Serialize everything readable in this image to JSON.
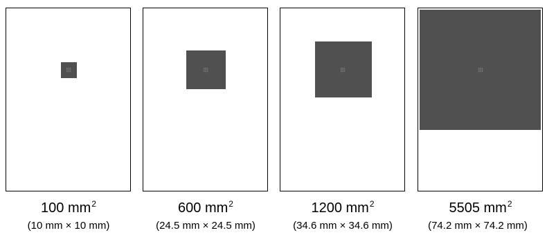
{
  "panels": [
    {
      "area_value": "100 mm",
      "area_exp": "2",
      "dimensions": "(10 mm × 10 mm)",
      "patch_color": "#505050"
    },
    {
      "area_value": "600 mm",
      "area_exp": "2",
      "dimensions": "(24.5 mm × 24.5 mm)",
      "patch_color": "#505050"
    },
    {
      "area_value": "1200 mm",
      "area_exp": "2",
      "dimensions": "(34.6 mm × 34.6 mm)",
      "patch_color": "#505050"
    },
    {
      "area_value": "5505 mm",
      "area_exp": "2",
      "dimensions": "(74.2 mm × 74.2 mm)",
      "patch_color": "#505050"
    }
  ]
}
